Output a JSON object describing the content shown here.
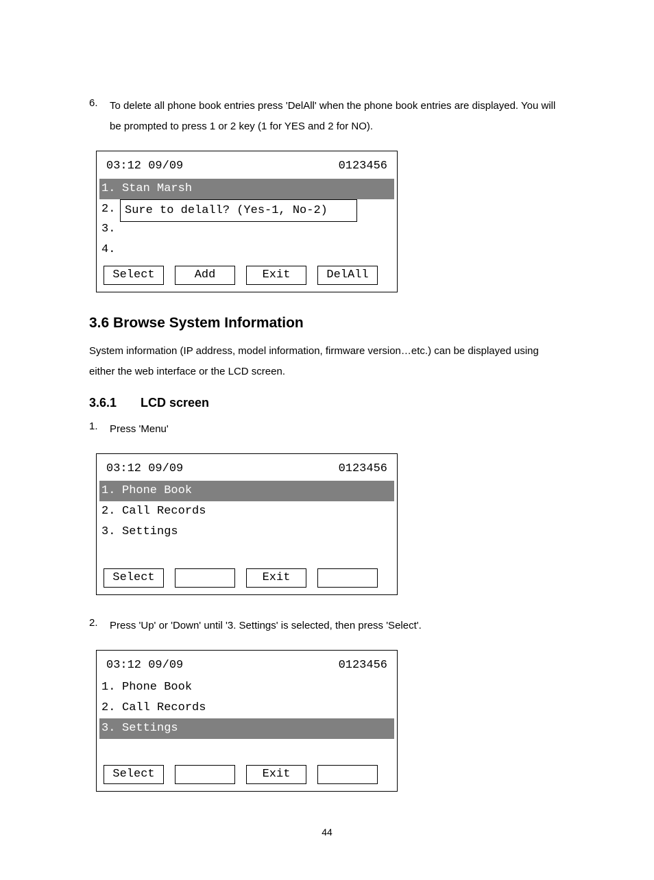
{
  "step6": {
    "num": "6.",
    "text": "To delete all phone book entries press 'DelAll' when the phone book entries are displayed. You will be prompted to press 1 or 2 key (1 for YES and 2 for NO)."
  },
  "lcd1": {
    "time": "03:12 09/09",
    "number": "0123456",
    "rows": [
      {
        "n": "1.",
        "t": "Stan Marsh",
        "hl": true
      },
      {
        "n": "2.",
        "t": "",
        "hl": false
      },
      {
        "n": "3.",
        "t": "",
        "hl": false
      },
      {
        "n": "4.",
        "t": "",
        "hl": false
      }
    ],
    "prompt": "Sure to delall? (Yes-1, No-2)",
    "buttons": [
      "Select",
      "Add",
      "Exit",
      "DelAll"
    ]
  },
  "section": {
    "heading": "3.6 Browse System Information",
    "para": "System information (IP address, model information, firmware version…etc.) can be displayed using either the web interface or the LCD screen."
  },
  "subsection": {
    "num": "3.6.1",
    "title": "LCD screen"
  },
  "step1": {
    "num": "1.",
    "text": "Press 'Menu'"
  },
  "lcd2": {
    "time": "03:12 09/09",
    "number": "0123456",
    "rows": [
      {
        "n": "1.",
        "t": "Phone Book",
        "hl": true
      },
      {
        "n": "2.",
        "t": "Call Records",
        "hl": false
      },
      {
        "n": "3.",
        "t": "Settings",
        "hl": false
      }
    ],
    "buttons": [
      "Select",
      "",
      "Exit",
      ""
    ]
  },
  "step2": {
    "num": "2.",
    "text": "Press 'Up' or 'Down' until '3. Settings' is selected, then press 'Select'."
  },
  "lcd3": {
    "time": "03:12 09/09",
    "number": "0123456",
    "rows": [
      {
        "n": "1.",
        "t": "Phone Book",
        "hl": false
      },
      {
        "n": "2.",
        "t": "Call Records",
        "hl": false
      },
      {
        "n": "3.",
        "t": "Settings",
        "hl": true
      }
    ],
    "buttons": [
      "Select",
      "",
      "Exit",
      ""
    ]
  },
  "pagenum": "44",
  "colors": {
    "highlight_bg": "#808080",
    "highlight_fg": "#ffffff",
    "text": "#000000",
    "bg": "#ffffff"
  }
}
